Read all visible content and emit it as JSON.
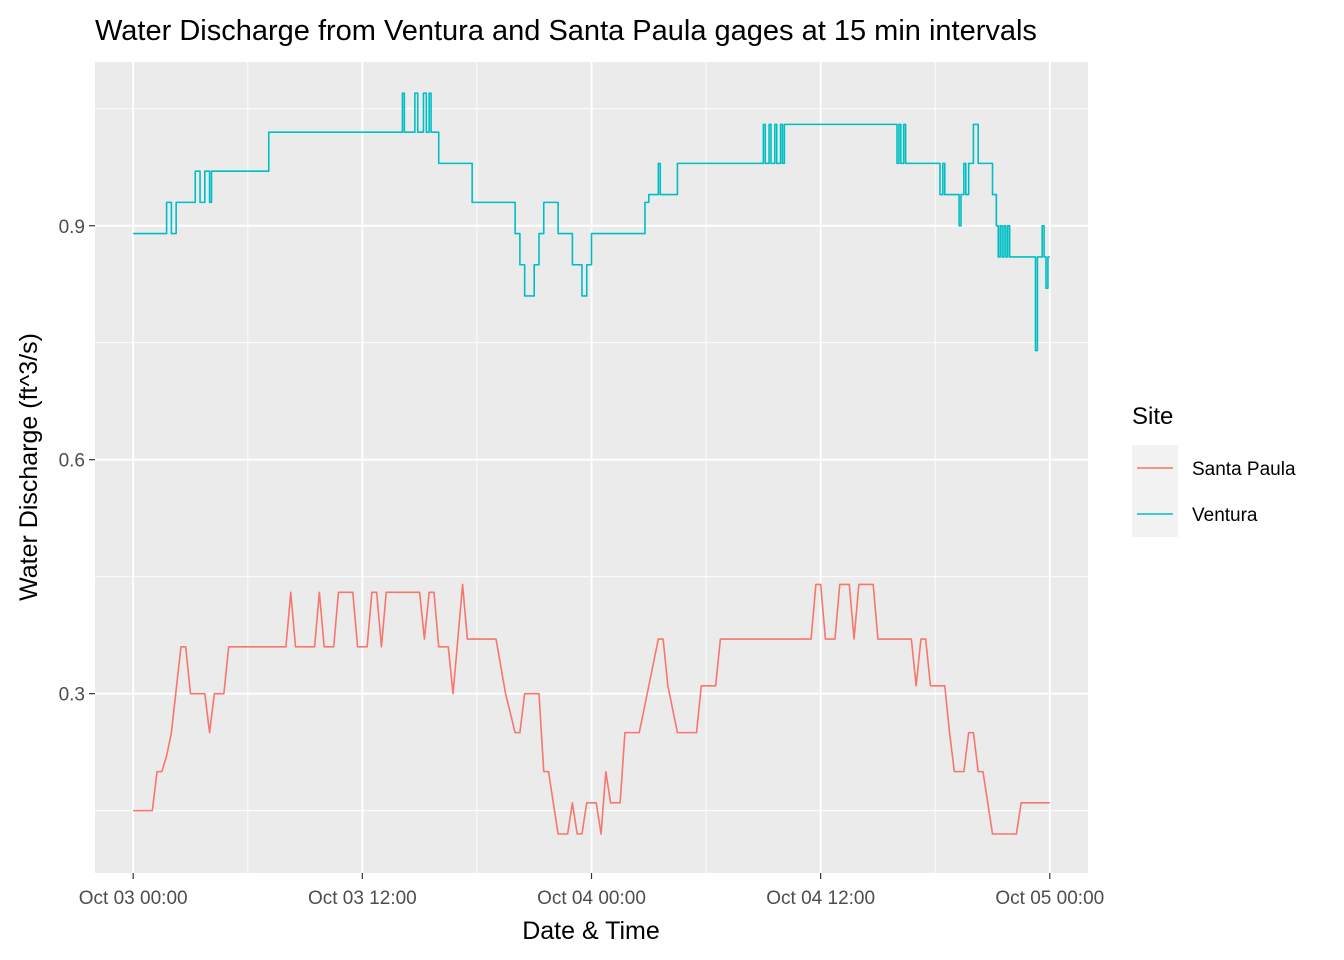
{
  "chart_data": {
    "type": "line",
    "title": "Water Discharge from Ventura and Santa Paula gages at 15 min intervals",
    "xlabel": "Date & Time",
    "ylabel": "Water Discharge (ft^3/s)",
    "x_unit": "hours since Oct 03 00:00",
    "xlim": [
      -2,
      50
    ],
    "ylim": [
      0.07,
      1.11
    ],
    "grid": true,
    "x_ticks": [
      {
        "value": 0,
        "label": "Oct 03 00:00"
      },
      {
        "value": 12,
        "label": "Oct 03 12:00"
      },
      {
        "value": 24,
        "label": "Oct 04 00:00"
      },
      {
        "value": 36,
        "label": "Oct 04 12:00"
      },
      {
        "value": 48,
        "label": "Oct 05 00:00"
      }
    ],
    "y_ticks": [
      {
        "value": 0.3,
        "label": "0.3"
      },
      {
        "value": 0.6,
        "label": "0.6"
      },
      {
        "value": 0.9,
        "label": "0.9"
      }
    ],
    "legend": {
      "title": "Site",
      "position": "right"
    },
    "series": [
      {
        "name": "Santa Paula",
        "color": "#F8766D",
        "points": [
          [
            0,
            0.15
          ],
          [
            1.0,
            0.15
          ],
          [
            1.25,
            0.2
          ],
          [
            1.5,
            0.2
          ],
          [
            1.75,
            0.22
          ],
          [
            2.0,
            0.25
          ],
          [
            2.5,
            0.36
          ],
          [
            2.75,
            0.36
          ],
          [
            3.0,
            0.3
          ],
          [
            3.5,
            0.3
          ],
          [
            3.75,
            0.3
          ],
          [
            4.0,
            0.25
          ],
          [
            4.25,
            0.3
          ],
          [
            4.75,
            0.3
          ],
          [
            5.0,
            0.36
          ],
          [
            8.0,
            0.36
          ],
          [
            8.25,
            0.43
          ],
          [
            8.5,
            0.36
          ],
          [
            9.5,
            0.36
          ],
          [
            9.75,
            0.43
          ],
          [
            10.0,
            0.36
          ],
          [
            10.5,
            0.36
          ],
          [
            10.75,
            0.43
          ],
          [
            11.5,
            0.43
          ],
          [
            11.75,
            0.36
          ],
          [
            12.25,
            0.36
          ],
          [
            12.5,
            0.43
          ],
          [
            12.75,
            0.43
          ],
          [
            13.0,
            0.36
          ],
          [
            13.25,
            0.43
          ],
          [
            15.0,
            0.43
          ],
          [
            15.25,
            0.37
          ],
          [
            15.5,
            0.43
          ],
          [
            15.75,
            0.43
          ],
          [
            16.0,
            0.36
          ],
          [
            16.5,
            0.36
          ],
          [
            16.75,
            0.3
          ],
          [
            17.0,
            0.37
          ],
          [
            17.25,
            0.44
          ],
          [
            17.5,
            0.37
          ],
          [
            19.0,
            0.37
          ],
          [
            19.5,
            0.3
          ],
          [
            20.0,
            0.25
          ],
          [
            20.25,
            0.25
          ],
          [
            20.5,
            0.3
          ],
          [
            21.25,
            0.3
          ],
          [
            21.5,
            0.2
          ],
          [
            21.75,
            0.2
          ],
          [
            22.0,
            0.16
          ],
          [
            22.25,
            0.12
          ],
          [
            22.75,
            0.12
          ],
          [
            23.0,
            0.16
          ],
          [
            23.25,
            0.12
          ],
          [
            23.5,
            0.12
          ],
          [
            23.75,
            0.16
          ],
          [
            24.25,
            0.16
          ],
          [
            24.5,
            0.12
          ],
          [
            24.75,
            0.2
          ],
          [
            25.0,
            0.16
          ],
          [
            25.5,
            0.16
          ],
          [
            25.75,
            0.25
          ],
          [
            26.5,
            0.25
          ],
          [
            27.0,
            0.31
          ],
          [
            27.5,
            0.37
          ],
          [
            27.75,
            0.37
          ],
          [
            28.0,
            0.31
          ],
          [
            28.5,
            0.25
          ],
          [
            29.5,
            0.25
          ],
          [
            29.75,
            0.31
          ],
          [
            30.5,
            0.31
          ],
          [
            30.75,
            0.37
          ],
          [
            35.5,
            0.37
          ],
          [
            35.75,
            0.44
          ],
          [
            36.0,
            0.44
          ],
          [
            36.25,
            0.37
          ],
          [
            36.75,
            0.37
          ],
          [
            37.0,
            0.44
          ],
          [
            37.5,
            0.44
          ],
          [
            37.75,
            0.37
          ],
          [
            38.0,
            0.44
          ],
          [
            38.75,
            0.44
          ],
          [
            39.0,
            0.37
          ],
          [
            40.75,
            0.37
          ],
          [
            41.0,
            0.31
          ],
          [
            41.25,
            0.37
          ],
          [
            41.5,
            0.37
          ],
          [
            41.75,
            0.31
          ],
          [
            42.5,
            0.31
          ],
          [
            42.75,
            0.25
          ],
          [
            43.0,
            0.2
          ],
          [
            43.5,
            0.2
          ],
          [
            43.75,
            0.25
          ],
          [
            44.0,
            0.25
          ],
          [
            44.25,
            0.2
          ],
          [
            44.5,
            0.2
          ],
          [
            44.75,
            0.16
          ],
          [
            45.0,
            0.12
          ],
          [
            46.25,
            0.12
          ],
          [
            46.5,
            0.16
          ],
          [
            48.0,
            0.16
          ]
        ]
      },
      {
        "name": "Ventura",
        "color": "#00BFC4",
        "points": [
          [
            0,
            0.89
          ],
          [
            1.75,
            0.89
          ],
          [
            1.75,
            0.93
          ],
          [
            2.0,
            0.93
          ],
          [
            2.0,
            0.89
          ],
          [
            2.25,
            0.89
          ],
          [
            2.25,
            0.93
          ],
          [
            3.25,
            0.93
          ],
          [
            3.25,
            0.97
          ],
          [
            3.5,
            0.97
          ],
          [
            3.5,
            0.93
          ],
          [
            3.75,
            0.93
          ],
          [
            3.75,
            0.97
          ],
          [
            4.0,
            0.97
          ],
          [
            4.0,
            0.93
          ],
          [
            4.1,
            0.93
          ],
          [
            4.1,
            0.97
          ],
          [
            7.1,
            0.97
          ],
          [
            7.1,
            1.02
          ],
          [
            14.1,
            1.02
          ],
          [
            14.1,
            1.07
          ],
          [
            14.2,
            1.07
          ],
          [
            14.2,
            1.02
          ],
          [
            14.75,
            1.02
          ],
          [
            14.75,
            1.07
          ],
          [
            14.9,
            1.07
          ],
          [
            14.9,
            1.02
          ],
          [
            15.2,
            1.02
          ],
          [
            15.2,
            1.07
          ],
          [
            15.35,
            1.07
          ],
          [
            15.35,
            1.02
          ],
          [
            15.5,
            1.02
          ],
          [
            15.5,
            1.07
          ],
          [
            15.6,
            1.07
          ],
          [
            15.6,
            1.02
          ],
          [
            16.0,
            1.02
          ],
          [
            16.0,
            0.98
          ],
          [
            17.75,
            0.98
          ],
          [
            17.75,
            0.93
          ],
          [
            20.0,
            0.93
          ],
          [
            20.0,
            0.89
          ],
          [
            20.25,
            0.89
          ],
          [
            20.25,
            0.85
          ],
          [
            20.5,
            0.85
          ],
          [
            20.5,
            0.81
          ],
          [
            21.0,
            0.81
          ],
          [
            21.0,
            0.85
          ],
          [
            21.25,
            0.85
          ],
          [
            21.25,
            0.89
          ],
          [
            21.5,
            0.89
          ],
          [
            21.5,
            0.93
          ],
          [
            22.25,
            0.93
          ],
          [
            22.25,
            0.89
          ],
          [
            23.0,
            0.89
          ],
          [
            23.0,
            0.85
          ],
          [
            23.5,
            0.85
          ],
          [
            23.5,
            0.81
          ],
          [
            23.75,
            0.81
          ],
          [
            23.75,
            0.85
          ],
          [
            24.0,
            0.85
          ],
          [
            24.0,
            0.89
          ],
          [
            26.8,
            0.89
          ],
          [
            26.8,
            0.93
          ],
          [
            27.0,
            0.93
          ],
          [
            27.0,
            0.94
          ],
          [
            27.5,
            0.94
          ],
          [
            27.5,
            0.98
          ],
          [
            27.6,
            0.98
          ],
          [
            27.6,
            0.94
          ],
          [
            28.5,
            0.94
          ],
          [
            28.5,
            0.98
          ],
          [
            33.0,
            0.98
          ],
          [
            33.0,
            1.03
          ],
          [
            33.1,
            1.03
          ],
          [
            33.1,
            0.98
          ],
          [
            33.3,
            0.98
          ],
          [
            33.3,
            1.03
          ],
          [
            33.4,
            1.03
          ],
          [
            33.4,
            0.98
          ],
          [
            33.6,
            0.98
          ],
          [
            33.6,
            1.03
          ],
          [
            33.7,
            1.03
          ],
          [
            33.7,
            0.98
          ],
          [
            33.9,
            0.98
          ],
          [
            33.9,
            1.03
          ],
          [
            34.0,
            1.03
          ],
          [
            34.0,
            0.98
          ],
          [
            34.1,
            0.98
          ],
          [
            34.1,
            1.03
          ],
          [
            40.0,
            1.03
          ],
          [
            40.0,
            0.98
          ],
          [
            40.1,
            0.98
          ],
          [
            40.1,
            1.03
          ],
          [
            40.2,
            1.03
          ],
          [
            40.2,
            0.98
          ],
          [
            40.35,
            0.98
          ],
          [
            40.35,
            1.03
          ],
          [
            40.45,
            1.03
          ],
          [
            40.45,
            0.98
          ],
          [
            42.25,
            0.98
          ],
          [
            42.25,
            0.94
          ],
          [
            42.4,
            0.94
          ],
          [
            42.4,
            0.98
          ],
          [
            42.5,
            0.98
          ],
          [
            42.5,
            0.94
          ],
          [
            43.25,
            0.94
          ],
          [
            43.25,
            0.9
          ],
          [
            43.35,
            0.9
          ],
          [
            43.35,
            0.94
          ],
          [
            43.5,
            0.94
          ],
          [
            43.5,
            0.98
          ],
          [
            43.6,
            0.98
          ],
          [
            43.6,
            0.94
          ],
          [
            43.75,
            0.94
          ],
          [
            43.75,
            0.98
          ],
          [
            44.0,
            0.98
          ],
          [
            44.0,
            1.03
          ],
          [
            44.25,
            1.03
          ],
          [
            44.25,
            0.98
          ],
          [
            45.0,
            0.98
          ],
          [
            45.0,
            0.94
          ],
          [
            45.2,
            0.94
          ],
          [
            45.2,
            0.9
          ],
          [
            45.3,
            0.9
          ],
          [
            45.3,
            0.86
          ],
          [
            45.4,
            0.86
          ],
          [
            45.4,
            0.9
          ],
          [
            45.5,
            0.9
          ],
          [
            45.5,
            0.86
          ],
          [
            45.6,
            0.86
          ],
          [
            45.6,
            0.9
          ],
          [
            45.7,
            0.9
          ],
          [
            45.7,
            0.86
          ],
          [
            45.8,
            0.86
          ],
          [
            45.8,
            0.9
          ],
          [
            45.9,
            0.9
          ],
          [
            45.9,
            0.86
          ],
          [
            47.25,
            0.86
          ],
          [
            47.25,
            0.74
          ],
          [
            47.35,
            0.74
          ],
          [
            47.35,
            0.86
          ],
          [
            47.6,
            0.86
          ],
          [
            47.6,
            0.9
          ],
          [
            47.7,
            0.9
          ],
          [
            47.7,
            0.86
          ],
          [
            47.8,
            0.86
          ],
          [
            47.8,
            0.82
          ],
          [
            47.9,
            0.82
          ],
          [
            47.9,
            0.86
          ],
          [
            48.0,
            0.86
          ]
        ]
      }
    ]
  }
}
